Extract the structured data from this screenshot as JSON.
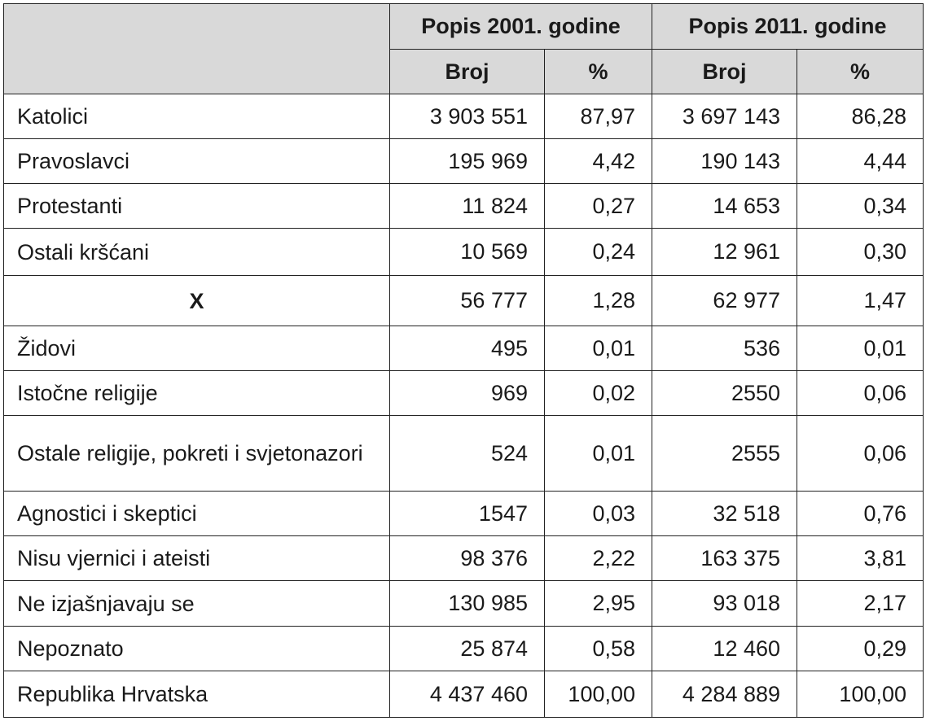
{
  "table": {
    "groups": [
      "Popis 2001. godine",
      "Popis 2011. godine"
    ],
    "subheaders": [
      "Broj",
      "%",
      "Broj",
      "%"
    ],
    "rows": [
      [
        "Katolici",
        "3 903 551",
        "87,97",
        "3 697 143",
        "86,28"
      ],
      [
        "Pravoslavci",
        "195 969",
        "4,42",
        "190 143",
        "4,44"
      ],
      [
        "Protestanti",
        "11 824",
        "0,27",
        "14 653",
        "0,34"
      ],
      [
        "Ostali kršćani",
        "10 569",
        "0,24",
        "12 961",
        "0,30"
      ],
      [
        "X",
        "56 777",
        "1,28",
        "62 977",
        "1,47"
      ],
      [
        "Židovi",
        "495",
        "0,01",
        "536",
        "0,01"
      ],
      [
        "Istočne religije",
        "969",
        "0,02",
        "2550",
        "0,06"
      ],
      [
        "Ostale religije, pokreti i svjetonazori",
        "524",
        "0,01",
        "2555",
        "0,06"
      ],
      [
        "Agnostici i skeptici",
        "1547",
        "0,03",
        "32 518",
        "0,76"
      ],
      [
        "Nisu vjernici i ateisti",
        "98 376",
        "2,22",
        "163 375",
        "3,81"
      ],
      [
        "Ne izjašnjavaju se",
        "130 985",
        "2,95",
        "93 018",
        "2,17"
      ],
      [
        "Nepoznato",
        "25 874",
        "0,58",
        "12 460",
        "0,29"
      ],
      [
        "Republika Hrvatska",
        "4 437 460",
        "100,00",
        "4 284 889",
        "100,00"
      ]
    ]
  }
}
